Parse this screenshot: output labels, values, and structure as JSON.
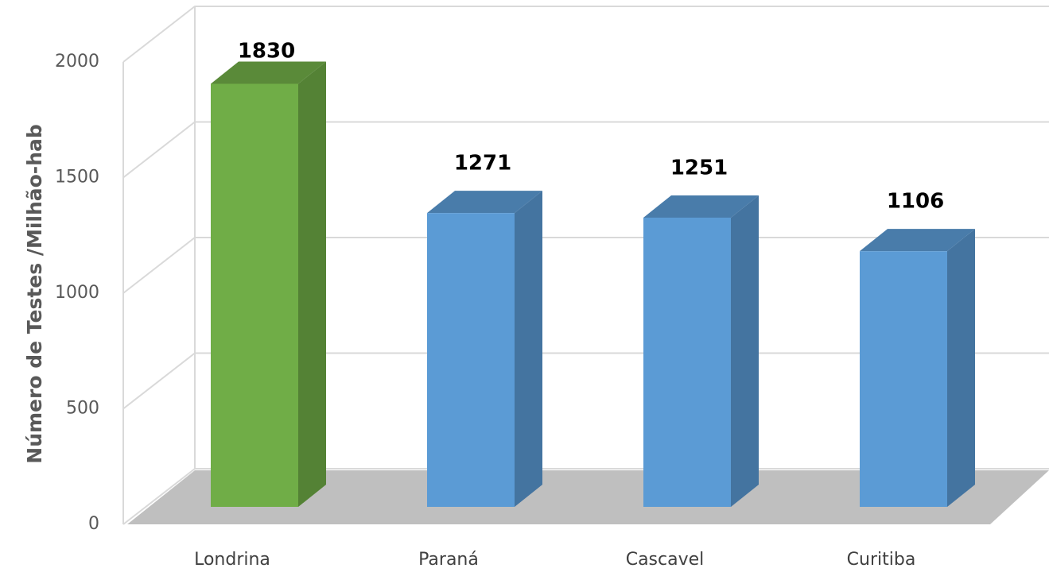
{
  "chart_data": {
    "type": "bar3d",
    "y_axis_label": "Número de Testes /Milhão-hab",
    "categories": [
      "Londrina",
      "Paraná",
      "Cascavel",
      "Curitiba"
    ],
    "values": [
      1830,
      1271,
      1251,
      1106
    ],
    "colors": [
      "#70ad47",
      "#5b9bd5",
      "#5b9bd5",
      "#5b9bd5"
    ],
    "ylim": [
      0,
      2000
    ],
    "yticks": [
      0,
      500,
      1000,
      1500,
      2000
    ],
    "grid": true
  }
}
